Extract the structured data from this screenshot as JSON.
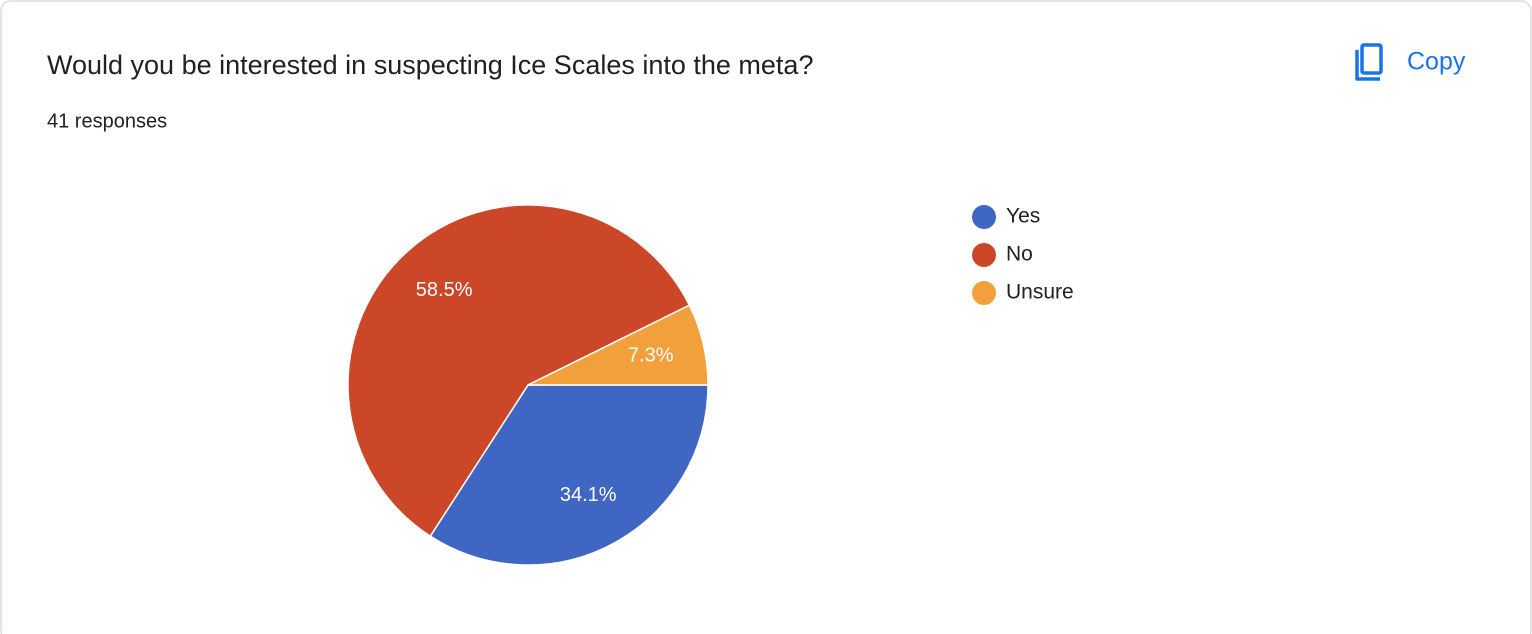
{
  "chart_data": {
    "type": "pie",
    "title": "Would you be interested in suspecting Ice Scales into the meta?",
    "subtitle": "41 responses",
    "categories": [
      "Yes",
      "No",
      "Unsure"
    ],
    "values": [
      34.1,
      58.5,
      7.3
    ],
    "value_labels": [
      "34.1%",
      "58.5%",
      "7.3%"
    ],
    "colors": [
      "#4066c4",
      "#cc4727",
      "#f2a03b"
    ],
    "legend": "right"
  },
  "copy_button": "Copy"
}
